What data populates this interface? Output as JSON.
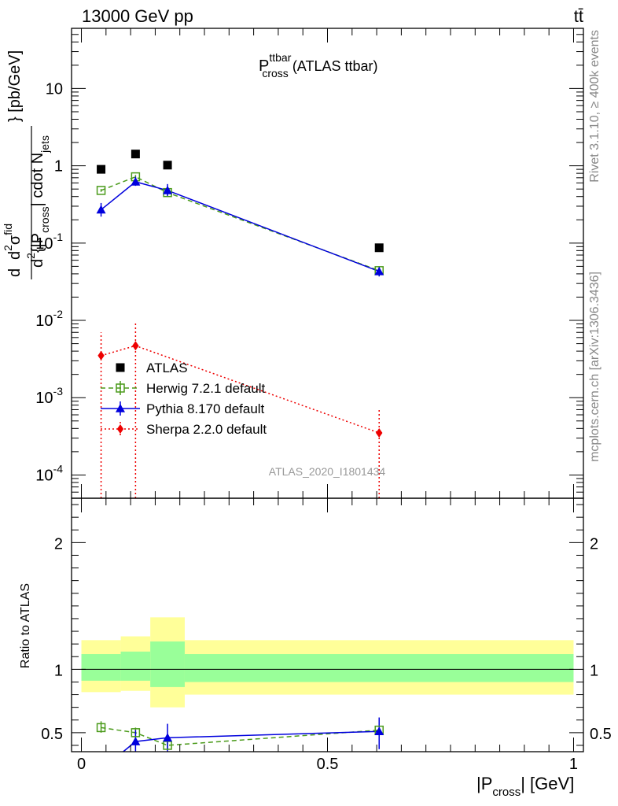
{
  "header": {
    "beam": "13000 GeV pp",
    "process": "tt̄",
    "side_top": "Rivet 3.1.10, ≥ 400k events",
    "side_bottom": "mcplots.cern.ch [arXiv:1306.3436]"
  },
  "chart_data": [
    {
      "type": "scatter",
      "panel": "main",
      "title_base": "P",
      "title_sup": "ttbar",
      "title_sub": "cross",
      "title_suffix": "(ATLAS ttbar)",
      "watermark": "ATLAS_2020_I1801434",
      "ylabel": {
        "d": "d",
        "sup2": "2",
        "sigma": "σ",
        "fid": "fid",
        "den": "d",
        "den_sup": "2",
        "den_main": "{|P",
        "den_sub": "cross",
        "den_end": "| cdot N",
        "den_sub2": "jets",
        "tail": "} [pb/GeV]"
      },
      "yscale": "log",
      "ylim": [
        5e-05,
        60
      ],
      "xlim": [
        -0.02,
        1.02
      ],
      "y_tick_labels": [
        {
          "base": "10",
          "exp": "-4",
          "value": 0.0001
        },
        {
          "base": "10",
          "exp": "-3",
          "value": 0.001
        },
        {
          "base": "10",
          "exp": "-2",
          "value": 0.01
        },
        {
          "base": "10",
          "exp": "-1",
          "value": 0.1
        },
        {
          "base": "1",
          "exp": "",
          "value": 1
        },
        {
          "base": "10",
          "exp": "",
          "value": 10
        }
      ],
      "series": [
        {
          "name": "ATLAS",
          "color": "#000000",
          "marker": "square-filled",
          "line": "none",
          "points": [
            {
              "x": 0.04,
              "y": 0.9,
              "lo": 0.9,
              "hi": 0.9
            },
            {
              "x": 0.11,
              "y": 1.42,
              "lo": 1.42,
              "hi": 1.42
            },
            {
              "x": 0.175,
              "y": 1.02,
              "lo": 1.02,
              "hi": 1.02
            },
            {
              "x": 0.605,
              "y": 0.087,
              "lo": 0.087,
              "hi": 0.087
            }
          ]
        },
        {
          "name": "Herwig 7.2.1 default",
          "color": "#4a9a1a",
          "marker": "square-open",
          "line": "dashed",
          "points": [
            {
              "x": 0.04,
              "y": 0.48,
              "lo": 0.46,
              "hi": 0.5
            },
            {
              "x": 0.11,
              "y": 0.72,
              "lo": 0.68,
              "hi": 0.76
            },
            {
              "x": 0.175,
              "y": 0.45,
              "lo": 0.42,
              "hi": 0.48
            },
            {
              "x": 0.605,
              "y": 0.044,
              "lo": 0.042,
              "hi": 0.046
            }
          ]
        },
        {
          "name": "Pythia 8.170 default",
          "color": "#0000dd",
          "marker": "triangle-filled",
          "line": "solid",
          "points": [
            {
              "x": 0.04,
              "y": 0.27,
              "lo": 0.22,
              "hi": 0.33
            },
            {
              "x": 0.11,
              "y": 0.62,
              "lo": 0.55,
              "hi": 0.72
            },
            {
              "x": 0.175,
              "y": 0.48,
              "lo": 0.4,
              "hi": 0.58
            },
            {
              "x": 0.605,
              "y": 0.043,
              "lo": 0.037,
              "hi": 0.05
            }
          ]
        },
        {
          "name": "Sherpa 2.2.0 default",
          "color": "#ee0000",
          "marker": "diamond-filled",
          "line": "dotted",
          "points": [
            {
              "x": 0.04,
              "y": 0.0035,
              "lo": 1e-06,
              "hi": 0.007
            },
            {
              "x": 0.11,
              "y": 0.0047,
              "lo": 1e-06,
              "hi": 0.0095
            },
            {
              "x": 0.605,
              "y": 0.00035,
              "lo": 1e-06,
              "hi": 0.0007
            }
          ]
        }
      ],
      "legend": "inside-lower-left"
    },
    {
      "type": "scatter",
      "panel": "ratio",
      "ylabel": "Ratio to ATLAS",
      "xlabel_base": "|P",
      "xlabel_sub": "cross",
      "xlabel_tail": "| [GeV]",
      "xlim": [
        -0.02,
        1.02
      ],
      "ylim": [
        0.35,
        2.35
      ],
      "x_tick_labels": [
        {
          "label": "0",
          "value": 0
        },
        {
          "label": "0.5",
          "value": 0.5
        },
        {
          "label": "1",
          "value": 1
        }
      ],
      "y_tick_labels": [
        {
          "label": "0.5",
          "value": 0.5
        },
        {
          "label": "1",
          "value": 1
        },
        {
          "label": "2",
          "value": 2
        }
      ],
      "bands": [
        {
          "x0": 0.0,
          "x1": 0.08,
          "yellow": [
            0.82,
            1.23
          ],
          "green": [
            0.91,
            1.12
          ]
        },
        {
          "x0": 0.08,
          "x1": 0.14,
          "yellow": [
            0.83,
            1.26
          ],
          "green": [
            0.91,
            1.14
          ]
        },
        {
          "x0": 0.14,
          "x1": 0.21,
          "yellow": [
            0.7,
            1.41
          ],
          "green": [
            0.86,
            1.22
          ]
        },
        {
          "x0": 0.21,
          "x1": 1.0,
          "yellow": [
            0.8,
            1.23
          ],
          "green": [
            0.9,
            1.12
          ]
        }
      ],
      "series": [
        {
          "name": "Herwig 7.2.1 default",
          "color": "#4a9a1a",
          "marker": "square-open",
          "line": "dashed",
          "points": [
            {
              "x": 0.04,
              "y": 0.54,
              "lo": 0.5,
              "hi": 0.59
            },
            {
              "x": 0.11,
              "y": 0.5,
              "lo": 0.46,
              "hi": 0.54
            },
            {
              "x": 0.175,
              "y": 0.4,
              "lo": 0.37,
              "hi": 0.43
            },
            {
              "x": 0.605,
              "y": 0.52,
              "lo": 0.48,
              "hi": 0.55
            }
          ]
        },
        {
          "name": "Pythia 8.170 default",
          "color": "#0000dd",
          "marker": "triangle-filled",
          "line": "solid",
          "points": [
            {
              "x": 0.085,
              "y": 0.33,
              "lo": 0.33,
              "hi": 0.33
            },
            {
              "x": 0.11,
              "y": 0.43,
              "lo": 0.35,
              "hi": 0.52
            },
            {
              "x": 0.175,
              "y": 0.46,
              "lo": 0.35,
              "hi": 0.57
            },
            {
              "x": 0.605,
              "y": 0.51,
              "lo": 0.37,
              "hi": 0.62
            }
          ]
        }
      ]
    }
  ]
}
